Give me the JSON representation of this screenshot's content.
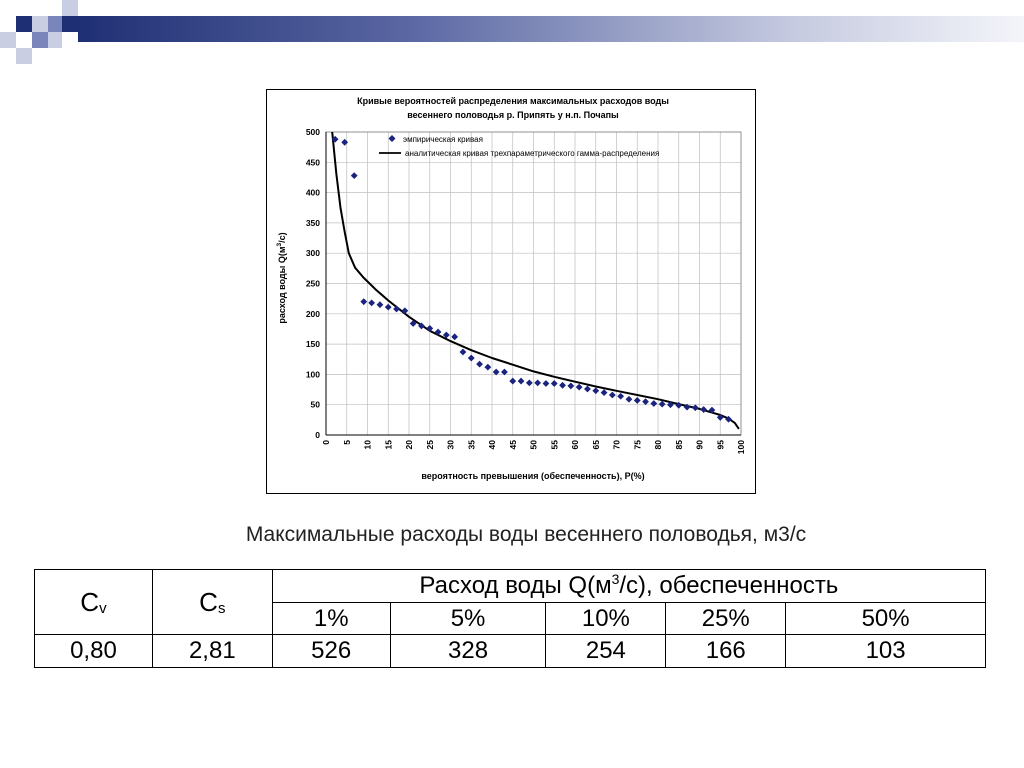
{
  "colors": {
    "accent_dark": "#1f2f73",
    "accent_mid": "#7a86bb",
    "accent_light": "#c9cee3",
    "marker": "#1a237e",
    "curve": "#000000",
    "grid": "#bfbfbf"
  },
  "chart_data": {
    "type": "scatter",
    "title_line1": "Кривые вероятностей распределения максимальных расходов воды",
    "title_line2": "весеннего половодья  р. Припять у н.п. Почапы",
    "ylabel": "расход воды Q(м",
    "ylabel_sup": "3",
    "ylabel_end": "/с)",
    "xlabel": "вероятность превышения (обеспеченность),  P(%)",
    "xlim": [
      0,
      100
    ],
    "ylim": [
      0,
      500
    ],
    "x_ticks": [
      "0",
      "5",
      "10",
      "15",
      "20",
      "25",
      "30",
      "35",
      "40",
      "45",
      "50",
      "55",
      "60",
      "65",
      "70",
      "75",
      "80",
      "85",
      "90",
      "95",
      "100"
    ],
    "y_ticks": [
      "0",
      "50",
      "100",
      "150",
      "200",
      "250",
      "300",
      "350",
      "400",
      "450",
      "500"
    ],
    "grid": true,
    "legend_position": "top-right",
    "series": [
      {
        "name": "эмпирическая кривая",
        "kind": "scatter",
        "marker": "diamond",
        "x": [
          2.2,
          4.5,
          6.8,
          9.1,
          11.0,
          13.0,
          15.0,
          17.0,
          19.0,
          21.0,
          23.0,
          25.0,
          27.0,
          29.0,
          31.0,
          33.0,
          35.0,
          37.0,
          39.0,
          41.0,
          43.0,
          45.0,
          47.0,
          49.0,
          51.0,
          53.0,
          55.0,
          57.0,
          59.0,
          61.0,
          63.0,
          65.0,
          67.0,
          69.0,
          71.0,
          73.0,
          75.0,
          77.0,
          79.0,
          81.0,
          83.0,
          85.0,
          87.0,
          89.0,
          91.0,
          93.0,
          95.0,
          97.0
        ],
        "y": [
          488,
          483,
          428,
          220,
          218,
          215,
          211,
          208,
          205,
          184,
          180,
          176,
          170,
          165,
          162,
          137,
          127,
          117,
          112,
          104,
          104,
          89,
          89,
          86,
          86,
          85,
          85,
          82,
          81,
          79,
          76,
          73,
          70,
          66,
          64,
          59,
          57,
          55,
          52,
          51,
          50,
          49,
          46,
          45,
          42,
          41,
          29,
          26
        ]
      },
      {
        "name": "аналитическая кривая трехпараметрического гамма-распределения",
        "kind": "line",
        "x": [
          1.5,
          2.5,
          3.5,
          4.5,
          5.5,
          7.0,
          9.0,
          12.0,
          15.0,
          20.0,
          25.0,
          30.0,
          35.0,
          40.0,
          45.0,
          50.0,
          55.0,
          60.0,
          65.0,
          70.0,
          75.0,
          80.0,
          85.0,
          90.0,
          93.0,
          95.0,
          97.0,
          98.5,
          99.5
        ],
        "y": [
          500,
          430,
          375,
          335,
          300,
          276,
          260,
          240,
          222,
          195,
          172,
          155,
          140,
          127,
          116,
          105,
          96,
          88,
          80,
          73,
          66,
          59,
          51,
          43,
          37,
          33,
          27,
          20,
          10
        ]
      }
    ]
  },
  "caption": "Максимальные расходы воды весеннего половодья, м3/с",
  "table": {
    "cv_main": "C",
    "cv_sub": "v",
    "cs_main": "C",
    "cs_sub": "s",
    "header_a": "Расход воды Q(м",
    "header_sup": "3",
    "header_b": "/с), обеспеченность",
    "percents": [
      "1%",
      "5%",
      "10%",
      "25%",
      "50%"
    ],
    "cv_value": "0,80",
    "cs_value": "2,81",
    "values": [
      "526",
      "328",
      "254",
      "166",
      "103"
    ]
  }
}
